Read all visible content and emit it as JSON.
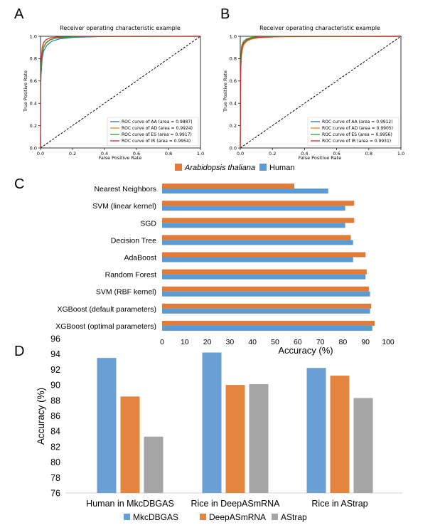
{
  "panels": {
    "a": "A",
    "b": "B",
    "c": "C",
    "d": "D"
  },
  "chart_data": [
    {
      "id": "A",
      "type": "line",
      "title": "Receiver operating characteristic example",
      "xlabel": "False Positive Rate",
      "ylabel": "True Positive Rate",
      "xlim": [
        0,
        1
      ],
      "ylim": [
        0,
        1
      ],
      "ticks": [
        "0.0",
        "0.2",
        "0.4",
        "0.6",
        "0.8",
        "1.0"
      ],
      "legend_position": "lower-right",
      "series": [
        {
          "name": "ROC curve of AA (area = 0.9887)",
          "color": "#1f77b4",
          "points": [
            [
              0,
              0
            ],
            [
              0.002,
              0.62
            ],
            [
              0.01,
              0.8
            ],
            [
              0.02,
              0.87
            ],
            [
              0.04,
              0.92
            ],
            [
              0.07,
              0.955
            ],
            [
              0.12,
              0.978
            ],
            [
              0.2,
              0.99
            ],
            [
              0.35,
              0.997
            ],
            [
              0.6,
              1.0
            ],
            [
              1,
              1
            ]
          ]
        },
        {
          "name": "ROC curve of AD (area = 0.9924)",
          "color": "#ff7f0e",
          "points": [
            [
              0,
              0
            ],
            [
              0.002,
              0.68
            ],
            [
              0.01,
              0.85
            ],
            [
              0.02,
              0.91
            ],
            [
              0.035,
              0.945
            ],
            [
              0.06,
              0.972
            ],
            [
              0.1,
              0.986
            ],
            [
              0.2,
              0.995
            ],
            [
              0.4,
              0.999
            ],
            [
              1,
              1
            ]
          ]
        },
        {
          "name": "ROC curve of ES (area = 0.9917)",
          "color": "#2ca02c",
          "points": [
            [
              0,
              0
            ],
            [
              0.002,
              0.66
            ],
            [
              0.01,
              0.84
            ],
            [
              0.02,
              0.9
            ],
            [
              0.035,
              0.94
            ],
            [
              0.06,
              0.968
            ],
            [
              0.1,
              0.985
            ],
            [
              0.2,
              0.995
            ],
            [
              0.4,
              0.999
            ],
            [
              1,
              1
            ]
          ]
        },
        {
          "name": "ROC curve of IR (area = 0.9954)",
          "color": "#d62728",
          "points": [
            [
              0,
              0
            ],
            [
              0.002,
              0.74
            ],
            [
              0.01,
              0.9
            ],
            [
              0.02,
              0.945
            ],
            [
              0.035,
              0.97
            ],
            [
              0.06,
              0.986
            ],
            [
              0.1,
              0.993
            ],
            [
              0.2,
              0.998
            ],
            [
              1,
              1
            ]
          ]
        }
      ],
      "diagonal": true
    },
    {
      "id": "B",
      "type": "line",
      "title": "Receiver operating characteristic example",
      "xlabel": "False Positive Rate",
      "ylabel": "True Positive Rate",
      "xlim": [
        0,
        1
      ],
      "ylim": [
        0,
        1
      ],
      "ticks": [
        "0.0",
        "0.2",
        "0.4",
        "0.6",
        "0.8",
        "1.0"
      ],
      "legend_position": "lower-right",
      "series": [
        {
          "name": "ROC curve of AA (area = 0.9912)",
          "color": "#1f77b4",
          "points": [
            [
              0,
              0
            ],
            [
              0.002,
              0.7
            ],
            [
              0.008,
              0.86
            ],
            [
              0.02,
              0.93
            ],
            [
              0.04,
              0.96
            ],
            [
              0.07,
              0.978
            ],
            [
              0.12,
              0.99
            ],
            [
              0.25,
              0.997
            ],
            [
              1,
              1
            ]
          ]
        },
        {
          "name": "ROC curve of AD (area = 0.9905)",
          "color": "#ff7f0e",
          "points": [
            [
              0,
              0
            ],
            [
              0.002,
              0.66
            ],
            [
              0.008,
              0.84
            ],
            [
              0.02,
              0.92
            ],
            [
              0.04,
              0.955
            ],
            [
              0.07,
              0.975
            ],
            [
              0.12,
              0.988
            ],
            [
              0.25,
              0.996
            ],
            [
              1,
              1
            ]
          ]
        },
        {
          "name": "ROC curve of ES (area = 0.9956)",
          "color": "#2ca02c",
          "points": [
            [
              0,
              0
            ],
            [
              0.002,
              0.78
            ],
            [
              0.008,
              0.91
            ],
            [
              0.02,
              0.955
            ],
            [
              0.04,
              0.978
            ],
            [
              0.07,
              0.99
            ],
            [
              0.12,
              0.996
            ],
            [
              0.25,
              0.999
            ],
            [
              1,
              1
            ]
          ]
        },
        {
          "name": "ROC curve of IR (area = 0.9931)",
          "color": "#d62728",
          "points": [
            [
              0,
              0
            ],
            [
              0.002,
              0.72
            ],
            [
              0.008,
              0.88
            ],
            [
              0.02,
              0.94
            ],
            [
              0.04,
              0.968
            ],
            [
              0.07,
              0.983
            ],
            [
              0.12,
              0.992
            ],
            [
              0.25,
              0.998
            ],
            [
              1,
              1
            ]
          ]
        }
      ],
      "diagonal": true
    },
    {
      "id": "C",
      "type": "bar",
      "orientation": "horizontal",
      "xlabel": "Accuracy (%)",
      "xlim": [
        0,
        100
      ],
      "ticks": [
        "0",
        "10",
        "20",
        "30",
        "40",
        "50",
        "60",
        "70",
        "80",
        "90",
        "100"
      ],
      "legend_position": "top",
      "categories": [
        "Nearest Neighbors",
        "SVM (linear kernel)",
        "SGD",
        "Decision Tree",
        "AdaBoost",
        "Random Forest",
        "SVM (RBF kernel)",
        "XGBoost (default parameters)",
        "XGBoost (optimal parameters)"
      ],
      "series": [
        {
          "name": "Arabidopsis thaliana",
          "color": "#e07b39",
          "values": [
            58.5,
            85,
            85,
            83.5,
            90,
            90.5,
            91.5,
            92.5,
            94
          ]
        },
        {
          "name": "Human",
          "color": "#5b9bd5",
          "values": [
            73.5,
            81,
            81,
            84.5,
            84.5,
            90,
            92,
            92,
            93
          ]
        }
      ]
    },
    {
      "id": "D",
      "type": "bar",
      "orientation": "vertical",
      "ylabel": "Accuracy (%)",
      "ylim": [
        76,
        96
      ],
      "ticks": [
        "76",
        "78",
        "80",
        "82",
        "84",
        "86",
        "88",
        "90",
        "92",
        "94",
        "96"
      ],
      "legend_position": "bottom",
      "categories": [
        "Human in MkcDBGAS",
        "Rice in DeepASmRNA",
        "Rice in AStrap"
      ],
      "series": [
        {
          "name": "MkcDBGAS",
          "color": "#6a9fd4",
          "values": [
            93.5,
            94.2,
            92.2
          ]
        },
        {
          "name": "DeepASmRNA",
          "color": "#e3843f",
          "values": [
            88.5,
            90.0,
            91.2
          ]
        },
        {
          "name": "AStrap",
          "color": "#a5a5a5",
          "values": [
            83.3,
            90.1,
            88.3
          ]
        }
      ]
    }
  ]
}
